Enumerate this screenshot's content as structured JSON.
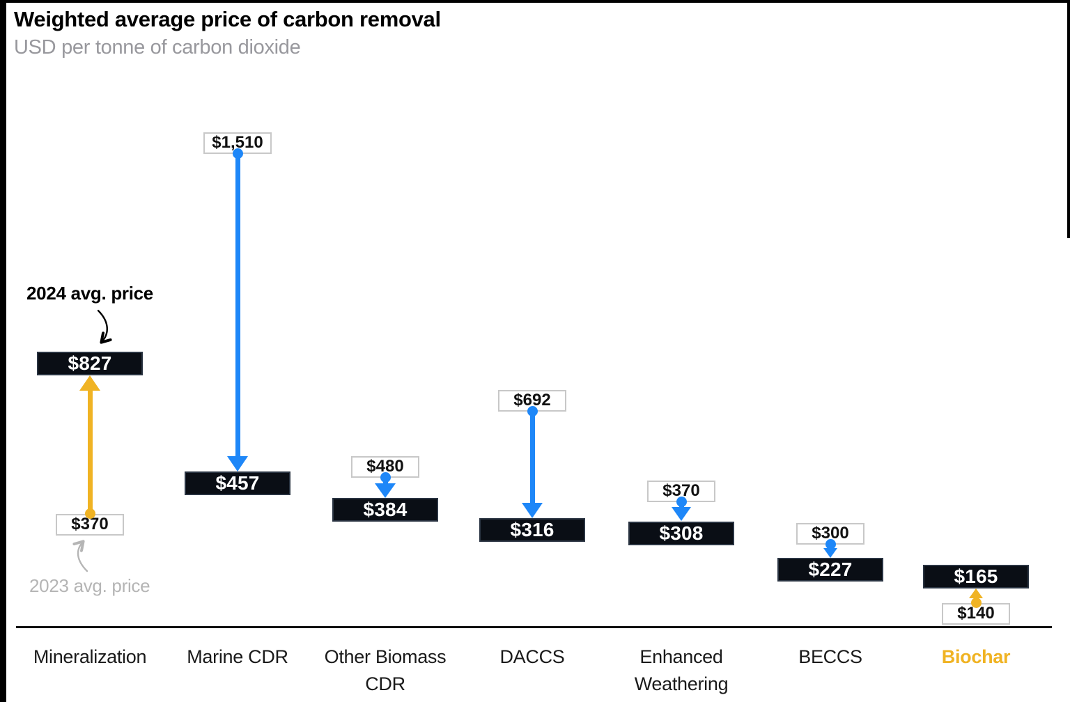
{
  "header": {
    "title": "Weighted average price of carbon removal",
    "subtitle": "USD per tonne of carbon dioxide"
  },
  "annotations": {
    "label_2024": "2024 avg. price",
    "label_2023": "2023 avg. price"
  },
  "colors": {
    "accentUp": "#F0B323",
    "accentDown": "#1E87F8",
    "ink": "#000000",
    "boxDark": "#0A0E15",
    "boxDarkBorder": "#2A3442",
    "boxLightBorder": "#C8C8C8",
    "muted": "#98989D",
    "mutedArrow": "#B5B5B5"
  },
  "columns": [
    {
      "label": "Mineralization",
      "value_2023": "$370",
      "value_2024": "$827",
      "direction": "up",
      "highlight": false
    },
    {
      "label": "Marine CDR",
      "value_2023": "$1,510",
      "value_2024": "$457",
      "direction": "down",
      "highlight": false
    },
    {
      "label": "Other Biomass CDR",
      "value_2023": "$480",
      "value_2024": "$384",
      "direction": "down",
      "highlight": false
    },
    {
      "label": "DACCS",
      "value_2023": "$692",
      "value_2024": "$316",
      "direction": "down",
      "highlight": false
    },
    {
      "label": "Enhanced Weathering",
      "value_2023": "$370",
      "value_2024": "$308",
      "direction": "down",
      "highlight": false
    },
    {
      "label": "BECCS",
      "value_2023": "$300",
      "value_2024": "$227",
      "direction": "down",
      "highlight": false
    },
    {
      "label": "Biochar",
      "value_2023": "$140",
      "value_2024": "$165",
      "direction": "up",
      "highlight": true
    }
  ],
  "chart_data": {
    "type": "scatter",
    "variant": "dumbbell arrow chart (2023 value -> 2024 value per category)",
    "title": "Weighted average price of carbon removal",
    "subtitle": "USD per tonne of carbon dioxide",
    "units": "USD per tonne of CO2",
    "categories": [
      "Mineralization",
      "Marine CDR",
      "Other Biomass CDR",
      "DACCS",
      "Enhanced Weathering",
      "BECCS",
      "Biochar"
    ],
    "series": [
      {
        "name": "2023 avg. price",
        "values": [
          370,
          1510,
          480,
          692,
          370,
          300,
          140
        ]
      },
      {
        "name": "2024 avg. price",
        "values": [
          827,
          457,
          384,
          316,
          308,
          227,
          165
        ]
      }
    ],
    "arrow_direction_by_category": [
      "up",
      "down",
      "down",
      "down",
      "down",
      "down",
      "up"
    ],
    "highlighted_category": "Biochar",
    "grid": false,
    "y_axis_shown": false,
    "legend": "inline annotations pointing at Mineralization boxes",
    "style_notes": "2024 values in black boxes with white text; 2023 values in white boxes with gray border; yellow arrows = price increase, blue arrows = price decrease"
  }
}
